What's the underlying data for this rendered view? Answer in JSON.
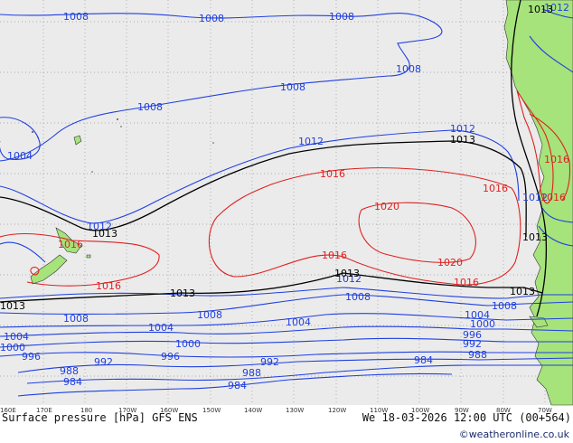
{
  "title": "Surface pressure [hPa] GFS ENS",
  "valid_time": "We 18-03-2026 12:00 UTC (00+564)",
  "credit": "©weatheronline.co.uk",
  "colors": {
    "ocean": "#ebebeb",
    "land": "#a6e37a",
    "blue": "#1f3fe0",
    "black": "#000000",
    "red": "#e02020",
    "grid": "#9a9a9a"
  },
  "longitude_ticks": [
    "160E",
    "170E",
    "180",
    "170W",
    "160W",
    "150W",
    "140W",
    "130W",
    "120W",
    "110W",
    "100W",
    "90W",
    "80W",
    "70W"
  ],
  "isobar_labels": {
    "l1008a": "1008",
    "l1008b": "1008",
    "l1008c": "1008",
    "l1008d": "1008",
    "l1008e": "1008",
    "l1008f": "1008",
    "l1004a": "1004",
    "l1012a": "1012",
    "l1012b": "1012",
    "l1012c": "1012",
    "l1012d": "1012",
    "l1013a": "1013",
    "l1013b": "1013",
    "l1013c": "1013",
    "l1013d": "1013",
    "l1013e": "1013",
    "l1013f": "1013",
    "l1013g": "1013",
    "l1016a": "1016",
    "l1016b": "1016",
    "l1016c": "1016",
    "l1016d": "1016",
    "l1016e": "1016",
    "l1016f": "1016",
    "l1016g": "1016",
    "l1020a": "1020",
    "l1020b": "1020",
    "l1008s1": "1008",
    "l1008s2": "1008",
    "l1008s3": "1008",
    "l1008s4": "1008",
    "l1004s1": "1004",
    "l1004s2": "1004",
    "l1004s3": "1004",
    "l1004s4": "1004",
    "l1000s1": "1000",
    "l1000s2": "1000",
    "l1000s3": "1000",
    "l996s1": "996",
    "l996s2": "996",
    "l996s3": "996",
    "l992s1": "992",
    "l992s2": "992",
    "l992s3": "992",
    "l988s1": "988",
    "l988s2": "988",
    "l988s3": "988",
    "l984s1": "984",
    "l984s2": "984",
    "l984s3": "984",
    "l1012ne": "1012",
    "l1012se": "1012",
    "l1013ne": "1013",
    "l1016e2": "1016"
  }
}
